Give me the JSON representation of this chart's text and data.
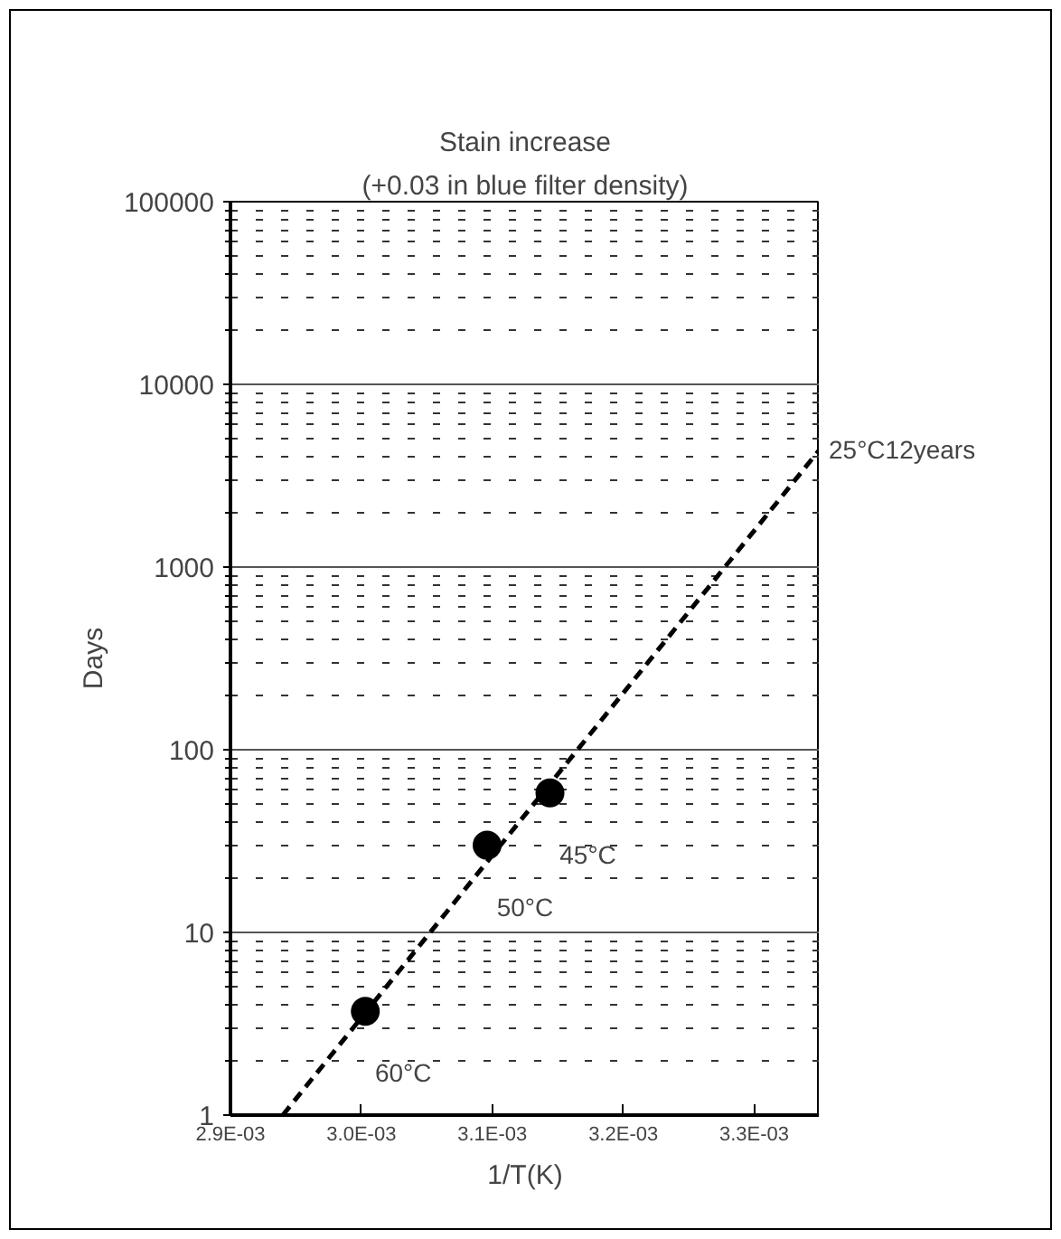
{
  "chart_data": {
    "type": "scatter",
    "title": "Stain increase",
    "subtitle": "(+0.03 in blue filter density)",
    "xlabel": "1/T(K)",
    "ylabel": "Days",
    "log": "y",
    "grid": "y",
    "series": [
      {
        "color": "#000000",
        "marker": "circle",
        "x": [
          0.003003,
          0.003096,
          0.003144
        ],
        "values": [
          3.7,
          30,
          58
        ]
      },
      {
        "type": "line",
        "color": "#000000",
        "marker": "none",
        "line_style": "dashed",
        "x": [
          0.00294,
          0.00335
        ],
        "values": [
          1,
          4400
        ]
      }
    ],
    "xlim": [
      0.0029,
      0.00335
    ],
    "xticks": [
      {
        "value": 0.0029,
        "label": "2.9E-03"
      },
      {
        "value": 0.003,
        "label": "3.0E-03"
      },
      {
        "value": 0.0031,
        "label": "3.1E-03"
      },
      {
        "value": 0.0032,
        "label": "3.2E-03"
      },
      {
        "value": 0.0033,
        "label": "3.3E-03"
      }
    ],
    "ylim": [
      1,
      100000
    ],
    "yticks": [
      1,
      10,
      100,
      1000,
      10000,
      100000
    ],
    "annotations": [
      {
        "text": "60°C",
        "x": 0.003003,
        "y": 3.7
      },
      {
        "text": "50°C",
        "x": 0.003096,
        "y": 30
      },
      {
        "text": "45°C",
        "x": 0.003144,
        "y": 58
      },
      {
        "text": "25°C12years",
        "x": 0.00335,
        "y": 4400
      }
    ]
  }
}
